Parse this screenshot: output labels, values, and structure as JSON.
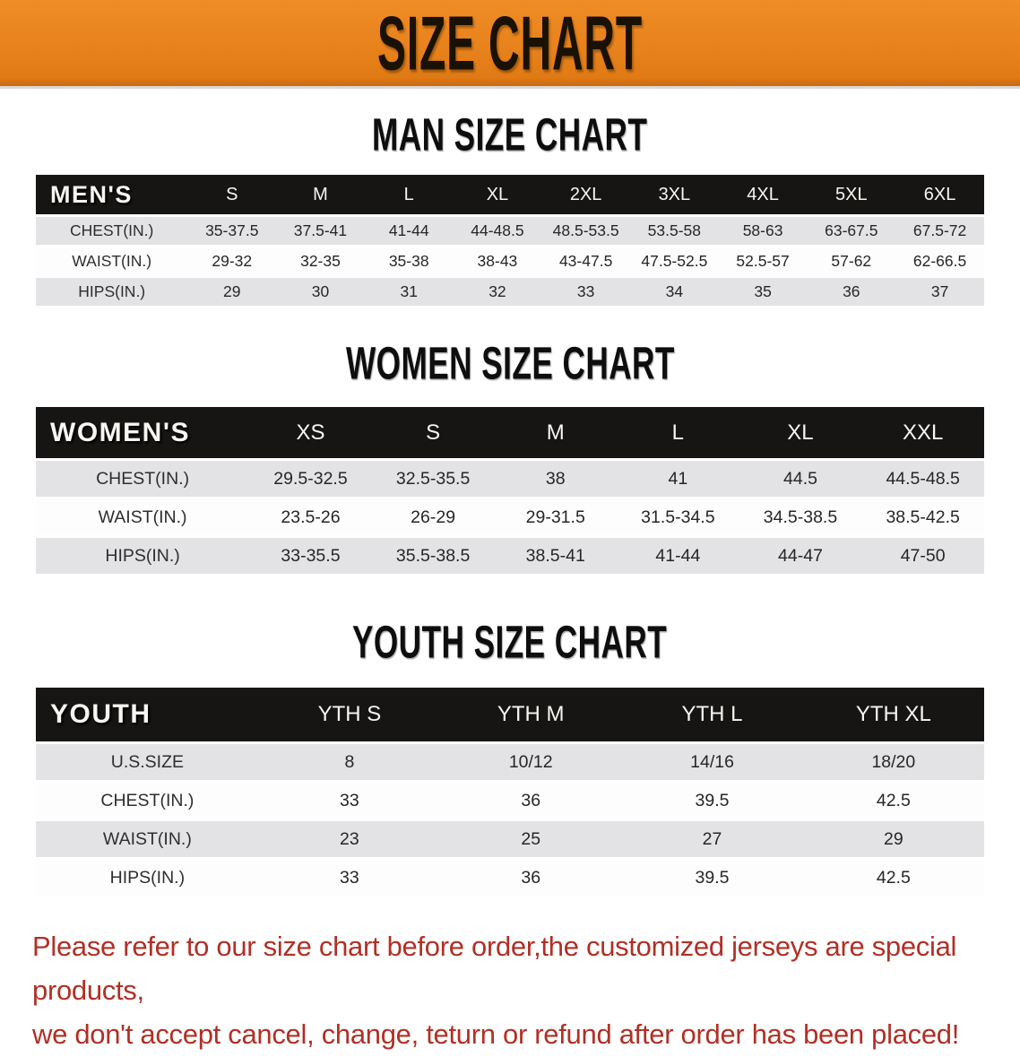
{
  "banner": {
    "title": "SIZE CHART",
    "bg_color": "#E8821C",
    "text_color": "#191104"
  },
  "men": {
    "section_title": "MAN SIZE CHART",
    "header_label": "MEN'S",
    "sizes": [
      "S",
      "M",
      "L",
      "XL",
      "2XL",
      "3XL",
      "4XL",
      "5XL",
      "6XL"
    ],
    "rows": [
      {
        "label": "CHEST(IN.)",
        "values": [
          "35-37.5",
          "37.5-41",
          "41-44",
          "44-48.5",
          "48.5-53.5",
          "53.5-58",
          "58-63",
          "63-67.5",
          "67.5-72"
        ]
      },
      {
        "label": "WAIST(IN.)",
        "values": [
          "29-32",
          "32-35",
          "35-38",
          "38-43",
          "43-47.5",
          "47.5-52.5",
          "52.5-57",
          "57-62",
          "62-66.5"
        ]
      },
      {
        "label": "HIPS(IN.)",
        "values": [
          "29",
          "30",
          "31",
          "32",
          "33",
          "34",
          "35",
          "36",
          "37"
        ]
      }
    ]
  },
  "women": {
    "section_title": "WOMEN SIZE CHART",
    "header_label": "WOMEN'S",
    "sizes": [
      "XS",
      "S",
      "M",
      "L",
      "XL",
      "XXL"
    ],
    "rows": [
      {
        "label": "CHEST(IN.)",
        "values": [
          "29.5-32.5",
          "32.5-35.5",
          "38",
          "41",
          "44.5",
          "44.5-48.5"
        ]
      },
      {
        "label": "WAIST(IN.)",
        "values": [
          "23.5-26",
          "26-29",
          "29-31.5",
          "31.5-34.5",
          "34.5-38.5",
          "38.5-42.5"
        ]
      },
      {
        "label": "HIPS(IN.)",
        "values": [
          "33-35.5",
          "35.5-38.5",
          "38.5-41",
          "41-44",
          "44-47",
          "47-50"
        ]
      }
    ]
  },
  "youth": {
    "section_title": "YOUTH SIZE CHART",
    "header_label": "YOUTH",
    "sizes": [
      "YTH S",
      "YTH M",
      "YTH L",
      "YTH XL"
    ],
    "rows": [
      {
        "label": "U.S.SIZE",
        "values": [
          "8",
          "10/12",
          "14/16",
          "18/20"
        ]
      },
      {
        "label": "CHEST(IN.)",
        "values": [
          "33",
          "36",
          "39.5",
          "42.5"
        ]
      },
      {
        "label": "WAIST(IN.)",
        "values": [
          "23",
          "25",
          "27",
          "29"
        ]
      },
      {
        "label": "HIPS(IN.)",
        "values": [
          "33",
          "36",
          "39.5",
          "42.5"
        ]
      }
    ]
  },
  "footer": {
    "line1": "Please refer to our size chart before order,the customized jerseys are special products,",
    "line2": "we don't accept cancel, change, teturn or refund after order has been placed!",
    "text_color": "#B13026"
  },
  "colors": {
    "banner_orange": "#E8821C",
    "header_bar_black": "#171513",
    "row_stripe_gray": "#E3E3E5",
    "note_red": "#B13026"
  }
}
